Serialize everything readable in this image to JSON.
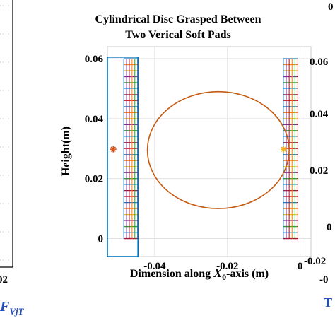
{
  "chart_data": [
    {
      "type": "line",
      "title_lines": [
        "Cylindrical Disc Grasped Between",
        "Two Verical Soft Pads"
      ],
      "xlabel_prefix": "Dimension along ",
      "xlabel_var": "X",
      "xlabel_sub": "0",
      "xlabel_suffix": "-axis (m)",
      "ylabel": "Height(m)",
      "xlim": [
        -0.053,
        0.003
      ],
      "ylim": [
        -0.006,
        0.064
      ],
      "xticks": [
        -0.04,
        -0.02,
        0
      ],
      "xtick_labels": [
        "-0.04",
        "-0.02",
        "0"
      ],
      "yticks": [
        0,
        0.02,
        0.04,
        0.06
      ],
      "ytick_labels": [
        "0",
        "0.02",
        "0.04",
        "0.06"
      ],
      "grid": true,
      "disc": {
        "center_x": -0.0225,
        "center_y": 0.0295,
        "radius": 0.0195,
        "color": "#c55a11"
      },
      "pads": [
        {
          "x_range": [
            -0.0485,
            -0.0447
          ],
          "y_range": [
            0,
            0.06
          ]
        },
        {
          "x_range": [
            -0.0046,
            -0.0006
          ],
          "y_range": [
            0,
            0.06
          ]
        }
      ],
      "pad_colors": [
        "#1f77b4",
        "#ff7f0e",
        "#e5c020",
        "#7e2f8e",
        "#2ca02c",
        "#4dbeee",
        "#a2142f",
        "#d62728"
      ],
      "pad_grid_columns": 5,
      "pad_grid_rows": 30,
      "outline_box": {
        "x_range": [
          -0.053,
          -0.0446
        ],
        "y_range": [
          -0.006,
          0.0605
        ],
        "color": "#0072bd"
      },
      "markers": [
        {
          "x": -0.0514,
          "y": 0.0298,
          "color": "#d95319",
          "symbol": "asterisk"
        },
        {
          "x": -0.0045,
          "y": 0.0298,
          "color": "#edb120",
          "symbol": "asterisk"
        }
      ]
    }
  ],
  "left_panel": {
    "xtick_label": "02",
    "caption_var": "F",
    "caption_sub": "VjT"
  },
  "right_panel": {
    "title_fragment": "0",
    "ytick_labels": [
      "0.06",
      "0.04",
      "0.02",
      "0",
      "-0.02"
    ],
    "xtick_fragment": "-0",
    "caption_fragment": "T"
  }
}
